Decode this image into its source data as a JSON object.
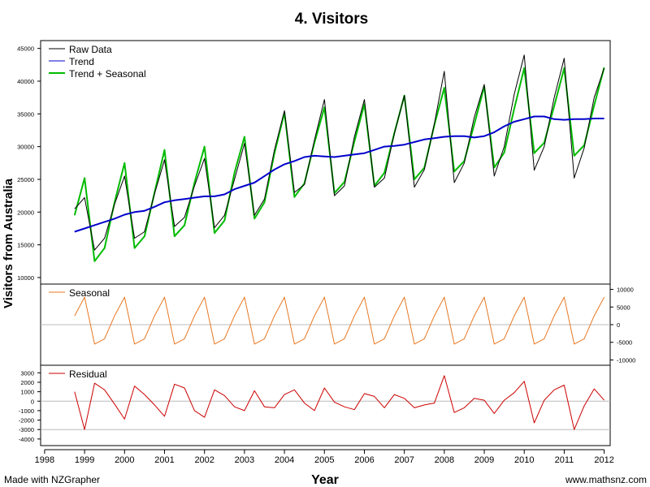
{
  "chart_data": [
    {
      "panel": "main",
      "type": "line",
      "title": "4. Visitors",
      "xlabel": "Year",
      "ylabel": "Visitors from Australia",
      "xlim": [
        1997.9,
        2012.15
      ],
      "ylim": [
        9000,
        46200
      ],
      "y_ticks": [
        10000,
        15000,
        20000,
        25000,
        30000,
        35000,
        40000,
        45000
      ],
      "x_ticks": [
        1998,
        1999,
        2000,
        2001,
        2002,
        2003,
        2004,
        2005,
        2006,
        2007,
        2008,
        2009,
        2010,
        2011,
        2012
      ],
      "x": [
        1998.75,
        1999.0,
        1999.25,
        1999.5,
        1999.75,
        2000.0,
        2000.25,
        2000.5,
        2000.75,
        2001.0,
        2001.25,
        2001.5,
        2001.75,
        2002.0,
        2002.25,
        2002.5,
        2002.75,
        2003.0,
        2003.25,
        2003.5,
        2003.75,
        2004.0,
        2004.25,
        2004.5,
        2004.75,
        2005.0,
        2005.25,
        2005.5,
        2005.75,
        2006.0,
        2006.25,
        2006.5,
        2006.75,
        2007.0,
        2007.25,
        2007.5,
        2007.75,
        2008.0,
        2008.25,
        2008.5,
        2008.75,
        2009.0,
        2009.25,
        2009.5,
        2009.75,
        2010.0,
        2010.25,
        2010.5,
        2010.75,
        2011.0,
        2011.25,
        2011.5,
        2011.75,
        2012.0
      ],
      "series": [
        {
          "name": "Raw Data",
          "color": "#000000",
          "values": [
            20500,
            22200,
            14200,
            16000,
            21200,
            25500,
            16000,
            17000,
            22800,
            28000,
            17800,
            19200,
            24000,
            28200,
            17600,
            19500,
            25000,
            30500,
            19500,
            22000,
            29500,
            35500,
            23000,
            24200,
            31000,
            37200,
            22500,
            24000,
            31500,
            37200,
            23800,
            25200,
            32000,
            37800,
            23800,
            26500,
            33500,
            41500,
            24500,
            27500,
            34500,
            39500,
            25500,
            30000,
            38000,
            44000,
            26400,
            30000,
            37500,
            43500,
            25200,
            29800,
            37500,
            42000
          ]
        },
        {
          "name": "Trend",
          "color": "#0000cc",
          "values": [
            17000,
            17500,
            18000,
            18500,
            19000,
            19600,
            20000,
            20200,
            20800,
            21500,
            21800,
            22000,
            22200,
            22400,
            22400,
            22700,
            23500,
            24000,
            24500,
            25500,
            26500,
            27300,
            27800,
            28400,
            28600,
            28500,
            28400,
            28600,
            28800,
            29000,
            29500,
            30000,
            30100,
            30300,
            30700,
            31100,
            31300,
            31500,
            31600,
            31600,
            31400,
            31600,
            32200,
            33100,
            33800,
            34200,
            34600,
            34600,
            34200,
            34100,
            34200,
            34200,
            34300,
            34300
          ]
        },
        {
          "name": "Trend + Seasonal",
          "color": "#00bb00",
          "values": [
            19500,
            25200,
            12500,
            14500,
            21500,
            27500,
            14500,
            16300,
            23000,
            29500,
            16300,
            18000,
            24500,
            30000,
            16800,
            18700,
            26000,
            31500,
            19000,
            21500,
            29000,
            35200,
            22300,
            24400,
            30600,
            36000,
            22900,
            24600,
            30800,
            36500,
            24000,
            26000,
            32100,
            37800,
            25000,
            26800,
            33300,
            39000,
            26200,
            27800,
            33400,
            39200,
            26800,
            29100,
            35800,
            42000,
            29000,
            30600,
            36200,
            42000,
            28600,
            30200,
            36300,
            42100
          ]
        }
      ],
      "legend": {
        "position": "top-left",
        "entries": [
          "Raw Data",
          "Trend",
          "Trend + Seasonal"
        ]
      },
      "grid": false
    },
    {
      "panel": "seasonal",
      "type": "line",
      "ylim": [
        -11500,
        11500
      ],
      "y_ticks": [
        10000,
        5000,
        0,
        -5000,
        -10000
      ],
      "reference_line": 0,
      "series": [
        {
          "name": "Seasonal",
          "color": "#e87722",
          "values": [
            2500,
            7800,
            -5500,
            -4000,
            2500,
            7800,
            -5500,
            -4000,
            2500,
            7800,
            -5500,
            -4000,
            2500,
            7800,
            -5500,
            -4000,
            2500,
            7800,
            -5500,
            -4000,
            2500,
            7800,
            -5500,
            -4000,
            2500,
            7800,
            -5500,
            -4000,
            2500,
            7800,
            -5500,
            -4000,
            2500,
            7800,
            -5500,
            -4000,
            2500,
            7800,
            -5500,
            -4000,
            2500,
            7800,
            -5500,
            -4000,
            2500,
            7800,
            -5500,
            -4000,
            2500,
            7800,
            -5500,
            -4000,
            2500,
            7800
          ]
        }
      ],
      "legend": {
        "position": "top-left",
        "entries": [
          "Seasonal"
        ]
      }
    },
    {
      "panel": "residual",
      "type": "line",
      "ylim": [
        -4700,
        3800
      ],
      "y_ticks": [
        3000,
        2000,
        1000,
        0,
        -1000,
        -2000,
        -3000,
        -4000
      ],
      "reference_lines": [
        0,
        -3000
      ],
      "series": [
        {
          "name": "Residual",
          "color": "#cc0000",
          "values": [
            1000,
            -3000,
            1900,
            1200,
            -300,
            -1900,
            1600,
            700,
            -400,
            -1600,
            1800,
            1400,
            -1000,
            -1700,
            1200,
            600,
            -600,
            -1000,
            1100,
            -600,
            -700,
            700,
            1200,
            -200,
            -1000,
            1400,
            -100,
            -600,
            -900,
            800,
            500,
            -700,
            700,
            300,
            -700,
            -400,
            -200,
            2700,
            -1200,
            -700,
            300,
            100,
            -1300,
            100,
            900,
            2100,
            -2300,
            100,
            1200,
            1700,
            -3000,
            -500,
            1300,
            100
          ]
        }
      ],
      "legend": {
        "position": "top-left",
        "entries": [
          "Residual"
        ]
      }
    }
  ],
  "footer": {
    "left": "Made with NZGrapher",
    "right": "www.mathsnz.com"
  }
}
